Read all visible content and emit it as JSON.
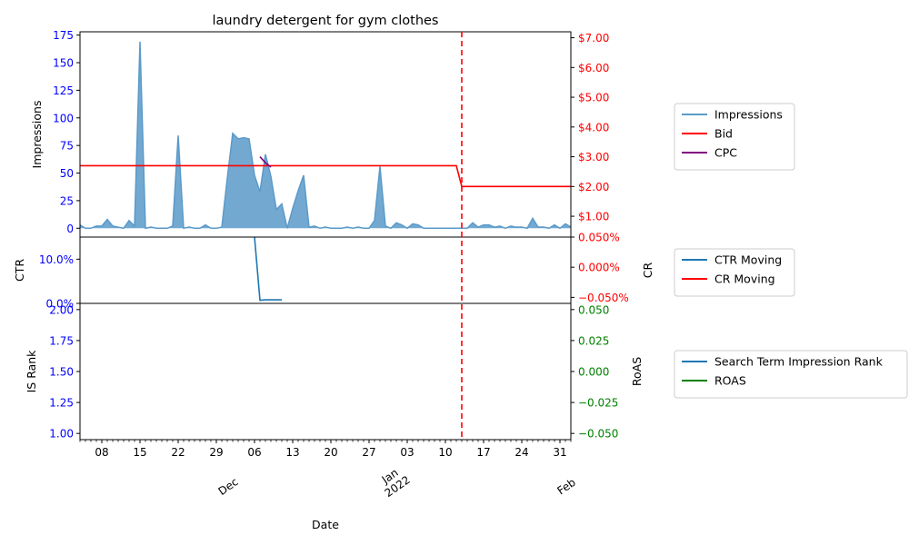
{
  "chart_data": {
    "type": "line",
    "title": "laundry detergent for gym clothes",
    "xlabel": "Date",
    "x_range": [
      "2021-11-04",
      "2022-02-02"
    ],
    "x_day_ticks": [
      {
        "date": "2021-11-08",
        "label": "08"
      },
      {
        "date": "2021-11-15",
        "label": "15"
      },
      {
        "date": "2021-11-22",
        "label": "22"
      },
      {
        "date": "2021-11-29",
        "label": "29"
      },
      {
        "date": "2021-12-06",
        "label": "06"
      },
      {
        "date": "2021-12-13",
        "label": "13"
      },
      {
        "date": "2021-12-20",
        "label": "20"
      },
      {
        "date": "2021-12-27",
        "label": "27"
      },
      {
        "date": "2022-01-03",
        "label": "03"
      },
      {
        "date": "2022-01-10",
        "label": "10"
      },
      {
        "date": "2022-01-17",
        "label": "17"
      },
      {
        "date": "2022-01-24",
        "label": "24"
      },
      {
        "date": "2022-01-31",
        "label": "31"
      }
    ],
    "x_month_ticks": [
      {
        "date": "2021-12-01",
        "label": "Dec"
      },
      {
        "date": "2022-01-01",
        "label": "Jan\n2022"
      },
      {
        "date": "2022-02-01",
        "label": "Feb"
      }
    ],
    "marker_date": "2022-01-13",
    "panels": [
      {
        "id": "top",
        "ylabel_left": "Impressions",
        "ylim_left": [
          -8,
          178
        ],
        "yticks_left": [
          0,
          25,
          50,
          75,
          100,
          125,
          150,
          175
        ],
        "ylim_right": [
          0.3,
          7.2
        ],
        "yticks_right": [
          1,
          2,
          3,
          4,
          5,
          6,
          7
        ],
        "yticks_right_labels": [
          "$1.00",
          "$2.00",
          "$3.00",
          "$4.00",
          "$5.00",
          "$6.00",
          "$7.00"
        ],
        "series": [
          {
            "name": "Impressions",
            "axis": "left",
            "kind": "area",
            "color": "#5b9ac9",
            "points": [
              [
                "2021-11-04",
                3
              ],
              [
                "2021-11-05",
                0
              ],
              [
                "2021-11-06",
                0
              ],
              [
                "2021-11-07",
                2
              ],
              [
                "2021-11-08",
                2
              ],
              [
                "2021-11-09",
                8
              ],
              [
                "2021-11-10",
                2
              ],
              [
                "2021-11-11",
                1
              ],
              [
                "2021-11-12",
                0
              ],
              [
                "2021-11-13",
                7
              ],
              [
                "2021-11-14",
                2
              ],
              [
                "2021-11-15",
                169
              ],
              [
                "2021-11-16",
                0
              ],
              [
                "2021-11-17",
                1
              ],
              [
                "2021-11-18",
                0
              ],
              [
                "2021-11-19",
                0
              ],
              [
                "2021-11-20",
                0
              ],
              [
                "2021-11-21",
                2
              ],
              [
                "2021-11-22",
                84
              ],
              [
                "2021-11-23",
                0
              ],
              [
                "2021-11-24",
                1
              ],
              [
                "2021-11-25",
                0
              ],
              [
                "2021-11-26",
                0
              ],
              [
                "2021-11-27",
                3
              ],
              [
                "2021-11-28",
                0
              ],
              [
                "2021-11-29",
                0
              ],
              [
                "2021-11-30",
                1
              ],
              [
                "2021-12-01",
                45
              ],
              [
                "2021-12-02",
                86
              ],
              [
                "2021-12-03",
                81
              ],
              [
                "2021-12-04",
                82
              ],
              [
                "2021-12-05",
                81
              ],
              [
                "2021-12-06",
                48
              ],
              [
                "2021-12-07",
                33
              ],
              [
                "2021-12-08",
                67
              ],
              [
                "2021-12-09",
                47
              ],
              [
                "2021-12-10",
                17
              ],
              [
                "2021-12-11",
                22
              ],
              [
                "2021-12-12",
                0
              ],
              [
                "2021-12-13",
                18
              ],
              [
                "2021-12-14",
                34
              ],
              [
                "2021-12-15",
                48
              ],
              [
                "2021-12-16",
                1
              ],
              [
                "2021-12-17",
                2
              ],
              [
                "2021-12-18",
                0
              ],
              [
                "2021-12-19",
                1
              ],
              [
                "2021-12-20",
                0
              ],
              [
                "2021-12-21",
                0
              ],
              [
                "2021-12-22",
                0
              ],
              [
                "2021-12-23",
                1
              ],
              [
                "2021-12-24",
                0
              ],
              [
                "2021-12-25",
                1
              ],
              [
                "2021-12-26",
                0
              ],
              [
                "2021-12-27",
                0
              ],
              [
                "2021-12-28",
                7
              ],
              [
                "2021-12-29",
                56
              ],
              [
                "2021-12-30",
                2
              ],
              [
                "2021-12-31",
                0
              ],
              [
                "2022-01-01",
                5
              ],
              [
                "2022-01-02",
                3
              ],
              [
                "2022-01-03",
                0
              ],
              [
                "2022-01-04",
                4
              ],
              [
                "2022-01-05",
                3
              ],
              [
                "2022-01-06",
                0
              ],
              [
                "2022-01-07",
                0
              ],
              [
                "2022-01-08",
                0
              ],
              [
                "2022-01-09",
                0
              ],
              [
                "2022-01-10",
                0
              ],
              [
                "2022-01-11",
                0
              ],
              [
                "2022-01-12",
                0
              ],
              [
                "2022-01-13",
                0
              ],
              [
                "2022-01-14",
                0
              ],
              [
                "2022-01-15",
                5
              ],
              [
                "2022-01-16",
                1
              ],
              [
                "2022-01-17",
                3
              ],
              [
                "2022-01-18",
                3
              ],
              [
                "2022-01-19",
                1
              ],
              [
                "2022-01-20",
                2
              ],
              [
                "2022-01-21",
                0
              ],
              [
                "2022-01-22",
                2
              ],
              [
                "2022-01-23",
                1
              ],
              [
                "2022-01-24",
                1
              ],
              [
                "2022-01-25",
                0
              ],
              [
                "2022-01-26",
                9
              ],
              [
                "2022-01-27",
                1
              ],
              [
                "2022-01-28",
                1
              ],
              [
                "2022-01-29",
                0
              ],
              [
                "2022-01-30",
                3
              ],
              [
                "2022-01-31",
                0
              ],
              [
                "2022-02-01",
                4
              ],
              [
                "2022-02-02",
                1
              ]
            ]
          },
          {
            "name": "Bid",
            "axis": "right",
            "kind": "line",
            "color": "#ff0000",
            "points": [
              [
                "2021-11-04",
                2.7
              ],
              [
                "2022-01-12",
                2.7
              ],
              [
                "2022-01-13",
                2.0
              ],
              [
                "2022-02-02",
                2.0
              ]
            ]
          },
          {
            "name": "CPC",
            "axis": "right",
            "kind": "line",
            "color": "#800080",
            "points": [
              [
                "2021-12-07",
                3.0
              ],
              [
                "2021-12-08",
                2.8
              ],
              [
                "2021-12-09",
                2.65
              ]
            ]
          }
        ]
      },
      {
        "id": "middle",
        "ylabel_left": "CTR",
        "ylabel_right": "CR",
        "ylim_left": [
          0,
          0.15
        ],
        "yticks_left": [
          0,
          0.1
        ],
        "yticks_left_labels": [
          "0.0%",
          "10.0%"
        ],
        "ylim_right": [
          -0.0006,
          0.0005
        ],
        "yticks_right": [
          -0.0005,
          0,
          0.0005
        ],
        "yticks_right_labels": [
          "−0.050%",
          "0.000%",
          "0.050%"
        ],
        "series": [
          {
            "name": "CTR Moving",
            "axis": "left",
            "kind": "line",
            "color": "#1f77b4",
            "points": [
              [
                "2021-12-06",
                0.15
              ],
              [
                "2021-12-07",
                0.007
              ],
              [
                "2021-12-08",
                0.008
              ],
              [
                "2021-12-11",
                0.008
              ]
            ]
          },
          {
            "name": "CR Moving",
            "axis": "right",
            "kind": "line",
            "color": "#ff0000",
            "points": []
          }
        ]
      },
      {
        "id": "bottom",
        "ylabel_left": "IS Rank",
        "ylabel_right": "RoAS",
        "ylim_left": [
          0.95,
          2.05
        ],
        "yticks_left": [
          1.0,
          1.25,
          1.5,
          1.75,
          2.0
        ],
        "yticks_left_labels": [
          "1.00",
          "1.25",
          "1.50",
          "1.75",
          "2.00"
        ],
        "ylim_right": [
          -0.055,
          0.055
        ],
        "yticks_right": [
          -0.05,
          -0.025,
          0,
          0.025,
          0.05
        ],
        "yticks_right_labels": [
          "−0.050",
          "−0.025",
          "0.000",
          "0.025",
          "0.050"
        ],
        "series": [
          {
            "name": "Search Term Impression Rank",
            "axis": "left",
            "kind": "line",
            "color": "#1f77b4",
            "points": []
          },
          {
            "name": "ROAS",
            "axis": "right",
            "kind": "line",
            "color": "#008000",
            "points": []
          }
        ]
      }
    ],
    "legends": [
      {
        "panel": "top",
        "entries": [
          {
            "label": "Impressions",
            "color": "#5b9ac9"
          },
          {
            "label": "Bid",
            "color": "#ff0000"
          },
          {
            "label": "CPC",
            "color": "#800080"
          }
        ]
      },
      {
        "panel": "middle",
        "entries": [
          {
            "label": "CTR Moving",
            "color": "#1f77b4"
          },
          {
            "label": "CR Moving",
            "color": "#ff0000"
          }
        ]
      },
      {
        "panel": "bottom",
        "entries": [
          {
            "label": "Search Term Impression Rank",
            "color": "#1f77b4"
          },
          {
            "label": "ROAS",
            "color": "#008000"
          }
        ]
      }
    ],
    "colors": {
      "left_tick": "#0000ff",
      "top_right_tick": "#ff0000",
      "middle_right_tick": "#ff0000",
      "bottom_right_tick": "#008000",
      "marker": "#ff0000"
    }
  }
}
